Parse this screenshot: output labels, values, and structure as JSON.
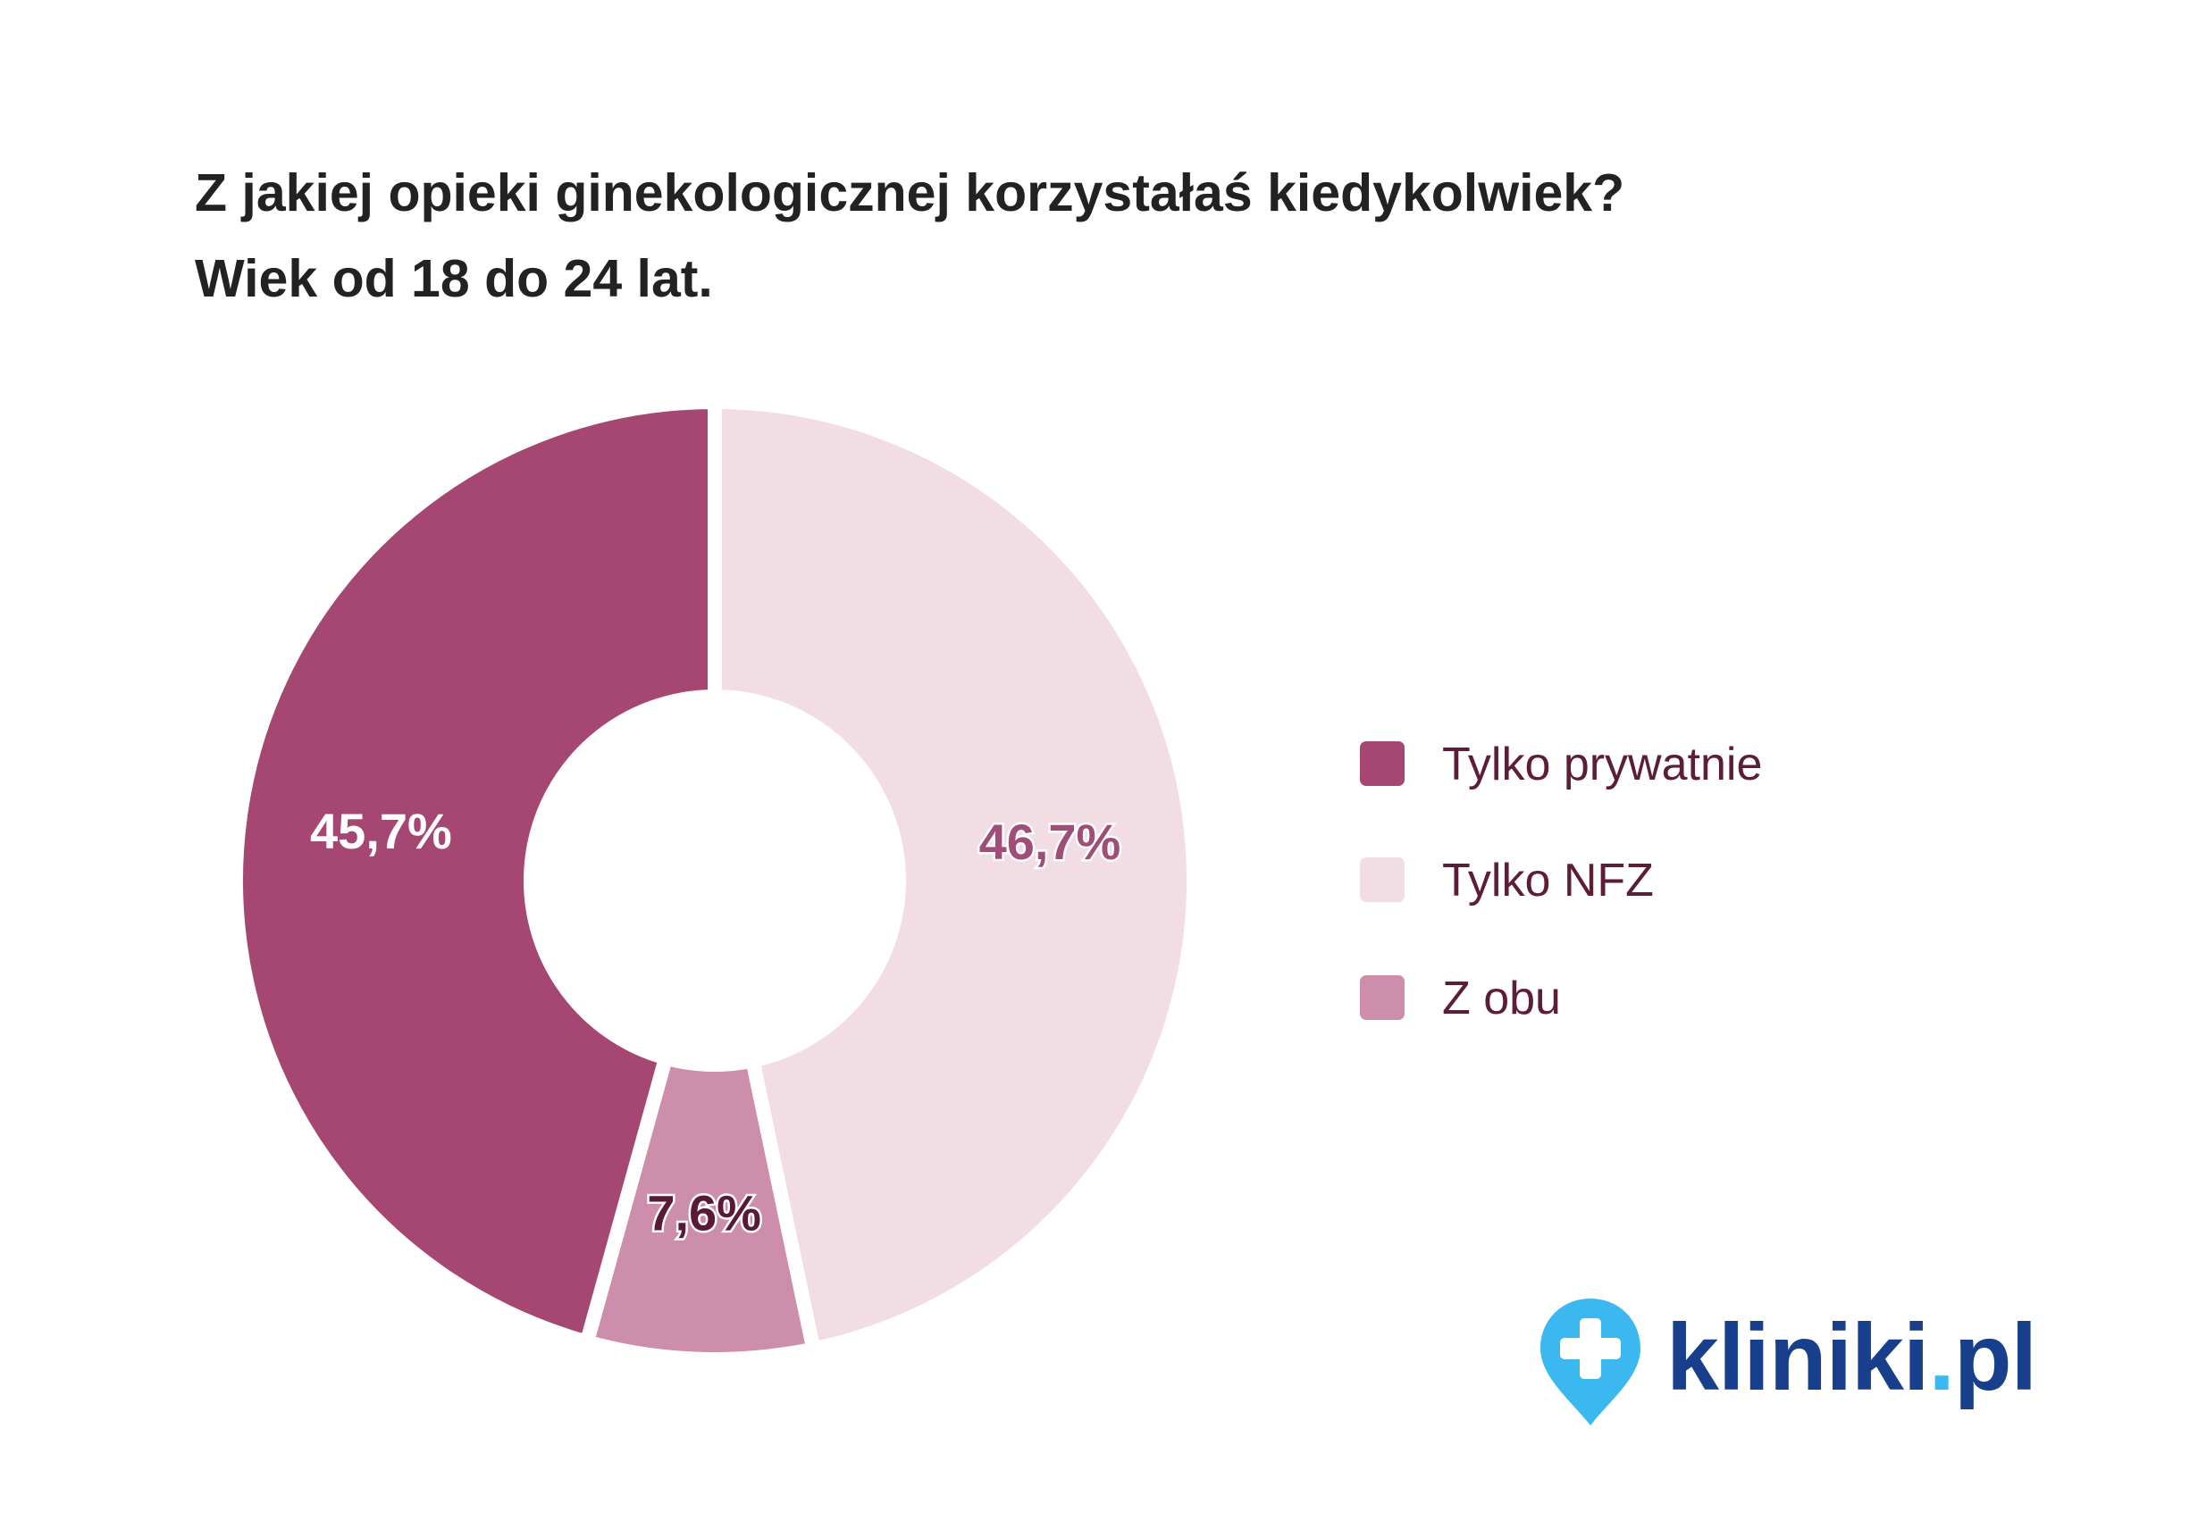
{
  "title_line1": "Z jakiej opieki ginekologicznej korzystałaś kiedykolwiek?",
  "title_line2": "Wiek od 18 do 24 lat.",
  "chart_data": {
    "type": "pie",
    "variant": "donut",
    "title": "Z jakiej opieki ginekologicznej korzystałaś kiedykolwiek? Wiek od 18 do 24 lat.",
    "start": "top",
    "direction": "clockwise",
    "slices": [
      {
        "label": "Tylko NFZ",
        "value": 46.7,
        "display": "46,7%",
        "color": "#f1dde3",
        "label_fill": "#a04d78",
        "label_stroke": "#ffffff"
      },
      {
        "label": "Z obu",
        "value": 7.6,
        "display": "7,6%",
        "color": "#cc8eab",
        "label_fill": "#5a1a34",
        "label_stroke": "#ffffff"
      },
      {
        "label": "Tylko prywatnie",
        "value": 45.7,
        "display": "45,7%",
        "color": "#a64672",
        "label_fill": "#ffffff",
        "label_stroke": "none"
      }
    ],
    "legend_position": "right"
  },
  "legend": [
    {
      "label": "Tylko prywatnie",
      "color": "#a64672"
    },
    {
      "label": "Tylko NFZ",
      "color": "#f1dde3"
    },
    {
      "label": "Z obu",
      "color": "#cc8eab"
    }
  ],
  "logo": {
    "text_main": "kliniki",
    "text_dot": ".",
    "text_tld": "pl",
    "brand_color": "#173f8c",
    "accent_color": "#3ab8ef"
  }
}
